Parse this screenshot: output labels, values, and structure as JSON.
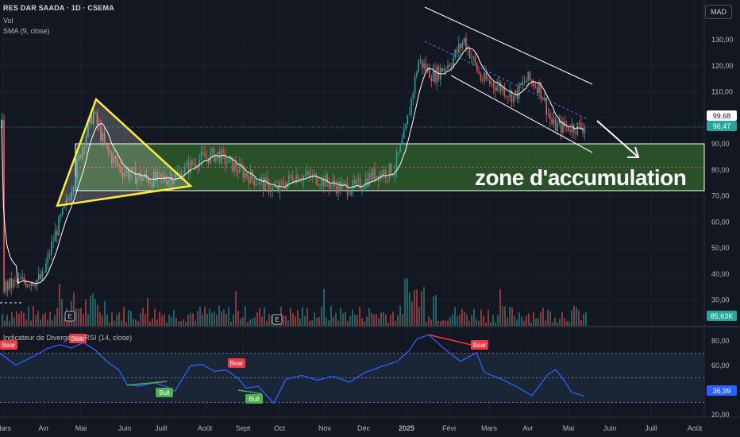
{
  "header": {
    "symbol_line": "RES DAR SAADA · 1D · CSEMA",
    "vol_label": "Vol",
    "sma_label": "SMA (9, close)",
    "currency": "MAD"
  },
  "rsi_panel": {
    "label": "Indicateur de Divergence RSI (14, close)"
  },
  "annotations": {
    "zone_text": "zone d'accumulation",
    "bear_label": "Bear",
    "bull_label": "Bull",
    "earnings_label": "E"
  },
  "colors": {
    "background": "#131722",
    "up": "#26a69a",
    "down": "#ef5350",
    "sma": "#ffffff",
    "rsi_line": "#2962ff",
    "zone_fill": "#2e5a2a",
    "triangle": "#ffeb3b",
    "bear_badge": "#f23645",
    "bull_badge": "#4caf50"
  },
  "chart_data": {
    "type": "candlestick",
    "title": "RES DAR SAADA · 1D · CSEMA",
    "y_axis_ticks": [
      "130,00",
      "120,00",
      "110,00",
      "100,00",
      "90,00",
      "80,00",
      "70,00",
      "60,00",
      "50,00",
      "40,00",
      "30,00"
    ],
    "y_axis_values": [
      130,
      120,
      110,
      100,
      90,
      80,
      70,
      60,
      50,
      40,
      30
    ],
    "x_axis_ticks": [
      "Mars",
      "Avr",
      "Mai",
      "Juin",
      "Juill",
      "Août",
      "Sept",
      "Oct",
      "Nov",
      "Déc",
      "2025",
      "Févr",
      "Mars",
      "Avr",
      "Mai",
      "Juin",
      "Juill",
      "Août"
    ],
    "price_labels": {
      "last_close": "96,47",
      "sma_value": "99,68",
      "volume": "85,63K"
    },
    "price_path": [
      [
        "2024-03-01",
        35
      ],
      [
        "2024-03-15",
        37
      ],
      [
        "2024-03-31",
        38
      ],
      [
        "2024-04-10",
        55
      ],
      [
        "2024-04-20",
        68
      ],
      [
        "2024-05-01",
        88
      ],
      [
        "2024-05-10",
        102
      ],
      [
        "2024-05-20",
        88
      ],
      [
        "2024-06-01",
        80
      ],
      [
        "2024-06-15",
        77
      ],
      [
        "2024-07-01",
        76
      ],
      [
        "2024-07-15",
        78
      ],
      [
        "2024-08-01",
        84
      ],
      [
        "2024-08-15",
        86
      ],
      [
        "2024-09-01",
        80
      ],
      [
        "2024-09-15",
        76
      ],
      [
        "2024-10-01",
        72
      ],
      [
        "2024-10-15",
        78
      ],
      [
        "2024-11-01",
        77
      ],
      [
        "2024-11-15",
        74
      ],
      [
        "2024-12-01",
        73
      ],
      [
        "2024-12-15",
        78
      ],
      [
        "2025-01-01",
        80
      ],
      [
        "2025-01-10",
        95
      ],
      [
        "2025-01-20",
        122
      ],
      [
        "2025-02-01",
        116
      ],
      [
        "2025-02-15",
        122
      ],
      [
        "2025-02-25",
        130
      ],
      [
        "2025-03-10",
        115
      ],
      [
        "2025-03-25",
        112
      ],
      [
        "2025-04-05",
        108
      ],
      [
        "2025-04-15",
        115
      ],
      [
        "2025-04-25",
        112
      ],
      [
        "2025-05-05",
        97
      ],
      [
        "2025-05-12",
        96.47
      ]
    ],
    "zone": {
      "name": "zone d'accumulation",
      "range": [
        72,
        90
      ],
      "mid": 81
    },
    "rsi": {
      "label": "Indicateur de Divergence RSI (14, close)",
      "y_axis_ticks": [
        "80,00",
        "60,00",
        "40,00",
        "20,00"
      ],
      "y_axis_values": [
        80,
        60,
        40,
        20
      ],
      "last_value": "36,99",
      "levels": [
        70,
        50,
        30
      ]
    },
    "divergences": [
      {
        "type": "Bear"
      },
      {
        "type": "Bear"
      },
      {
        "type": "Bull"
      },
      {
        "type": "Bear"
      },
      {
        "type": "Bull"
      },
      {
        "type": "Bear"
      }
    ]
  }
}
